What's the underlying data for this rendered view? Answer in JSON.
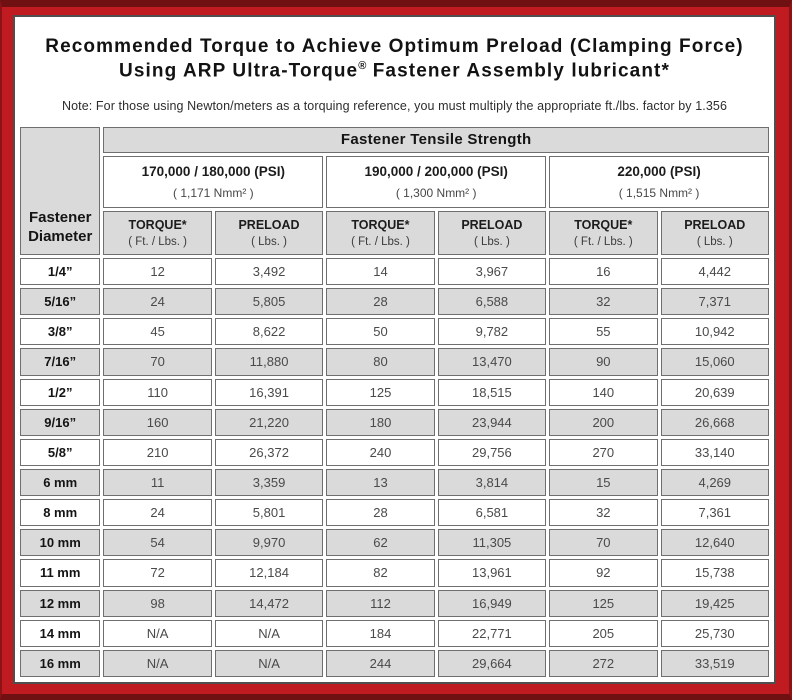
{
  "colors": {
    "frame_red": "#c01b20",
    "frame_dark_red": "#6f1013",
    "panel_border": "#4f4f4f",
    "cell_gray": "#dadada",
    "cell_border": "#6f6f6f"
  },
  "title": {
    "line1": "Recommended Torque to Achieve Optimum Preload (Clamping Force)",
    "line2_pre": "Using ARP Ultra-Torque",
    "line2_sup": "®",
    "line2_post": " Fastener Assembly lubricant*",
    "note": "Note: For those using Newton/meters as a torquing reference, you must multiply the appropriate ft./lbs. factor by 1.356"
  },
  "table": {
    "tensile_header": "Fastener Tensile Strength",
    "corner": {
      "line1": "Fastener",
      "line2": "Diameter"
    },
    "psi_groups": [
      {
        "psi": "170,000 / 180,000 (PSI)",
        "nmm": "( 1,171 Nmm² )"
      },
      {
        "psi": "190,000 / 200,000 (PSI)",
        "nmm": "( 1,300 Nmm² )"
      },
      {
        "psi": "220,000 (PSI)",
        "nmm": "( 1,515 Nmm² )"
      }
    ],
    "headers": {
      "torque": "TORQUE*",
      "torque_sub": "( Ft. / Lbs. )",
      "preload": "PRELOAD",
      "preload_sub": "( Lbs. )"
    },
    "rows": [
      {
        "d": "1/4”",
        "v": [
          "12",
          "3,492",
          "14",
          "3,967",
          "16",
          "4,442"
        ]
      },
      {
        "d": "5/16”",
        "v": [
          "24",
          "5,805",
          "28",
          "6,588",
          "32",
          "7,371"
        ]
      },
      {
        "d": "3/8”",
        "v": [
          "45",
          "8,622",
          "50",
          "9,782",
          "55",
          "10,942"
        ]
      },
      {
        "d": "7/16”",
        "v": [
          "70",
          "11,880",
          "80",
          "13,470",
          "90",
          "15,060"
        ]
      },
      {
        "d": "1/2”",
        "v": [
          "110",
          "16,391",
          "125",
          "18,515",
          "140",
          "20,639"
        ]
      },
      {
        "d": "9/16”",
        "v": [
          "160",
          "21,220",
          "180",
          "23,944",
          "200",
          "26,668"
        ]
      },
      {
        "d": "5/8”",
        "v": [
          "210",
          "26,372",
          "240",
          "29,756",
          "270",
          "33,140"
        ]
      },
      {
        "d": "6 mm",
        "v": [
          "11",
          "3,359",
          "13",
          "3,814",
          "15",
          "4,269"
        ]
      },
      {
        "d": "8 mm",
        "v": [
          "24",
          "5,801",
          "28",
          "6,581",
          "32",
          "7,361"
        ]
      },
      {
        "d": "10 mm",
        "v": [
          "54",
          "9,970",
          "62",
          "11,305",
          "70",
          "12,640"
        ]
      },
      {
        "d": "11 mm",
        "v": [
          "72",
          "12,184",
          "82",
          "13,961",
          "92",
          "15,738"
        ]
      },
      {
        "d": "12 mm",
        "v": [
          "98",
          "14,472",
          "112",
          "16,949",
          "125",
          "19,425"
        ]
      },
      {
        "d": "14 mm",
        "v": [
          "N/A",
          "N/A",
          "184",
          "22,771",
          "205",
          "25,730"
        ]
      },
      {
        "d": "16 mm",
        "v": [
          "N/A",
          "N/A",
          "244",
          "29,664",
          "272",
          "33,519"
        ]
      }
    ]
  }
}
